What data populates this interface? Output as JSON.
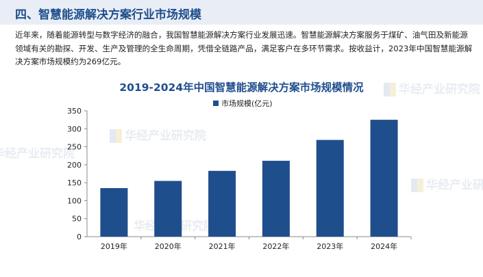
{
  "header": {
    "title": "四、智慧能源解决方案行业市场规模"
  },
  "intro": {
    "text": "近年来，随着能源转型与数字经济的融合，我国智慧能源解决方案行业发展迅速。智慧能源解决方案服务于煤矿、油气田及新能源领域有关的勘探、开发、生产及管理的全生命周期，凭借全链路产品，满足客户在多环节需求。按收益计，2023年中国智慧能源解决方案市场规模约为269亿元。"
  },
  "watermark": {
    "text": "华经产业研究院"
  },
  "colors": {
    "bar": "#1f4e8c",
    "title": "#1f4e8c",
    "header_bg": "#e9eef6"
  },
  "chart_data": {
    "type": "bar",
    "title": "2019-2024年中国智慧能源解决方案市场规模情况",
    "categories": [
      "2019年",
      "2020年",
      "2021年",
      "2022年",
      "2023年",
      "2024年"
    ],
    "series": [
      {
        "name": "市场规模(亿元)",
        "values": [
          135,
          155,
          183,
          211,
          269,
          325
        ]
      }
    ],
    "ylim": [
      0,
      350
    ],
    "yticks": [
      0,
      50,
      100,
      150,
      200,
      250,
      300,
      350
    ],
    "legend": "top-center",
    "grid": false
  }
}
